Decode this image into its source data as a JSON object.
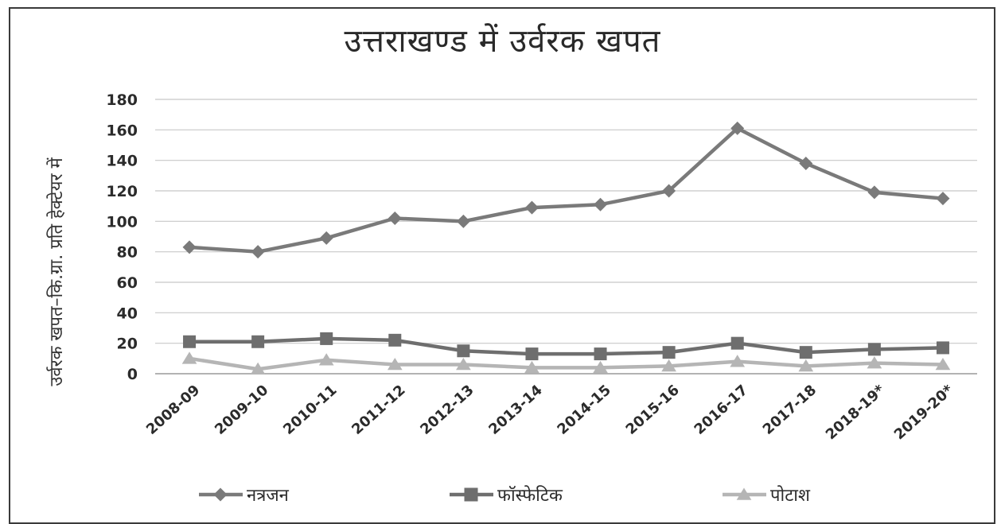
{
  "chart_data": {
    "type": "line",
    "title": "उत्तराखण्ड में उर्वरक खपत",
    "ylabel": "उर्वरक खपत–कि.ग्रा. प्रति हेक्टेयर में",
    "xlabel": "",
    "ylim": [
      0,
      180
    ],
    "yticks": [
      0,
      20,
      40,
      60,
      80,
      100,
      120,
      140,
      160,
      180
    ],
    "categories": [
      "2008-09",
      "2009-10",
      "2010-11",
      "2011-12",
      "2012-13",
      "2013-14",
      "2014-15",
      "2015-16",
      "2016-17",
      "2017-18",
      "2018-19*",
      "2019-20*"
    ],
    "grid": true,
    "legend_position": "bottom",
    "series": [
      {
        "name": "नत्रजन",
        "marker": "diamond",
        "color": "#7a7a7a",
        "values": [
          83,
          80,
          89,
          102,
          100,
          109,
          111,
          120,
          161,
          138,
          119,
          115
        ]
      },
      {
        "name": "फॉस्फेटिक",
        "marker": "square",
        "color": "#6e6e6e",
        "values": [
          21,
          21,
          23,
          22,
          15,
          13,
          13,
          14,
          20,
          14,
          16,
          17
        ]
      },
      {
        "name": "पोटाश",
        "marker": "triangle",
        "color": "#b5b5b5",
        "values": [
          10,
          3,
          9,
          6,
          6,
          4,
          4,
          5,
          8,
          5,
          7,
          6
        ]
      }
    ]
  }
}
